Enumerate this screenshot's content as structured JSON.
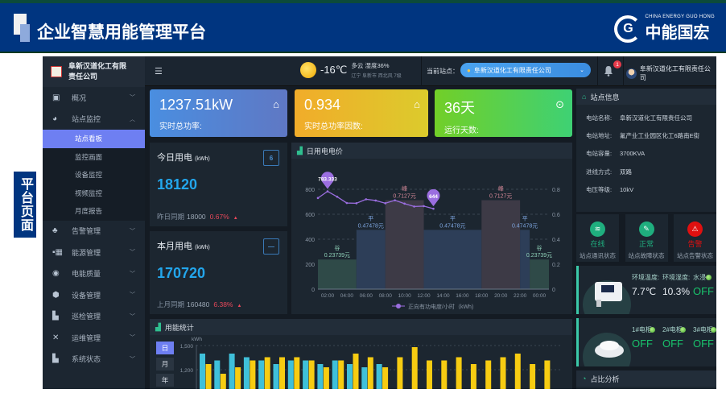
{
  "banner": {
    "title": "企业智慧用能管理平台",
    "logo_en": "CHINA ENERGY GUO HONG",
    "logo_cn": "中能国宏"
  },
  "side_label": "平台页面",
  "sidebar": {
    "company": "阜新汉道化工有限责任公司",
    "items": [
      {
        "label": "概况",
        "icon": "monitor-icon",
        "expanded": false
      },
      {
        "label": "站点监控",
        "icon": "gauge-icon",
        "expanded": true,
        "children": [
          {
            "label": "站点看板",
            "active": true
          },
          {
            "label": "监控画面"
          },
          {
            "label": "设备监控"
          },
          {
            "label": "视频监控"
          },
          {
            "label": "月度报告"
          }
        ]
      },
      {
        "label": "告警管理",
        "icon": "alarm-icon",
        "expanded": false
      },
      {
        "label": "能源管理",
        "icon": "energy-icon",
        "expanded": false
      },
      {
        "label": "电能质量",
        "icon": "quality-icon",
        "expanded": false
      },
      {
        "label": "设备管理",
        "icon": "cube-icon",
        "expanded": false
      },
      {
        "label": "巡检管理",
        "icon": "inspection-icon",
        "expanded": false
      },
      {
        "label": "运维管理",
        "icon": "tools-icon",
        "expanded": false
      },
      {
        "label": "系统状态",
        "icon": "status-icon",
        "expanded": false
      }
    ]
  },
  "topbar": {
    "weather": {
      "temp": "-16℃",
      "desc": "多云 湿度36%",
      "location": "辽宁 阜新市 西北风 7级",
      "icon": "partly-cloudy-icon"
    },
    "site_label": "当前站点：",
    "site_value": "阜新汉道化工有限责任公司",
    "notifications": "1",
    "user": "阜新汉道化工有限责任公司"
  },
  "kpis": [
    {
      "value": "1237.51kW",
      "label": "实时总功率:",
      "color": "#4f86d6",
      "icon": "home-power-icon"
    },
    {
      "value": "0.934",
      "label": "实时总功率因数:",
      "color": "#eab628",
      "icon": "home-power-icon"
    },
    {
      "value": "36天",
      "label": "运行天数:",
      "color": "#4fcc45",
      "icon": "pulse-icon"
    }
  ],
  "today": {
    "title": "今日用电",
    "unit": "(kWh)",
    "calendar": "6",
    "value": "18120",
    "cmp_label": "昨日同期",
    "cmp_value": "18000",
    "change": "0.67%"
  },
  "month": {
    "title": "本月用电",
    "unit": "(kWh)",
    "value": "170720",
    "cmp_label": "上月同期",
    "cmp_value": "160480",
    "change": "6.38%"
  },
  "daily_chart_title": "日用电电价",
  "site_info": {
    "title": "站点信息",
    "rows": [
      {
        "k": "电站名称:",
        "v": "阜新汉道化工有限责任公司"
      },
      {
        "k": "电站地址:",
        "v": "氟产业工业园区化工6路南E街"
      },
      {
        "k": "电站容量:",
        "v": "3700KVA"
      },
      {
        "k": "进线方式:",
        "v": "双路"
      },
      {
        "k": "电压等级:",
        "v": "10kV"
      }
    ]
  },
  "status_tiles": [
    {
      "status": "在线",
      "desc": "站点通讯状态",
      "color": "#1fae7e",
      "icon": "wifi-icon"
    },
    {
      "status": "正常",
      "desc": "站点故障状态",
      "color": "#1fae7e",
      "icon": "wrench-icon"
    },
    {
      "status": "告警",
      "desc": "站点告警状态",
      "color": "#e01010",
      "icon": "warning-icon"
    }
  ],
  "env_sensor": {
    "temp_label": "环境温度:",
    "temp_value": "7.7℃",
    "hum_label": "环境湿度:",
    "hum_value": "10.3%",
    "water_label": "水浸",
    "water_value": "OFF"
  },
  "smoke_sensor": [
    {
      "label": "1#电柜:",
      "value": "OFF"
    },
    {
      "label": "2#电柜:",
      "value": "OFF"
    },
    {
      "label": "3#电柜:",
      "value": "OFF"
    }
  ],
  "ratio_title": "占比分析",
  "usage": {
    "title": "用能统计",
    "tabs": [
      "日",
      "月",
      "年"
    ],
    "active_tab": "日"
  },
  "chart_data": [
    {
      "type": "bar+line",
      "title": "日用电电价",
      "x_ticks": [
        "02:00",
        "04:00",
        "06:00",
        "08:00",
        "10:00",
        "12:00",
        "14:00",
        "16:00",
        "18:00",
        "20:00",
        "22:00",
        "00:00"
      ],
      "y_left": {
        "range": [
          0,
          800
        ],
        "ticks": [
          0,
          200,
          400,
          600,
          800
        ]
      },
      "y_right": {
        "range": [
          0,
          0.8
        ],
        "ticks": [
          0,
          0.2,
          0.4,
          0.6,
          0.8
        ]
      },
      "price_periods": [
        {
          "name": "谷",
          "label": "0.23739元",
          "price": 0.23739,
          "from": 0,
          "to": 4,
          "color": "#2f4a48"
        },
        {
          "name": "平",
          "label": "0.47478元",
          "price": 0.47478,
          "from": 4,
          "to": 7,
          "color": "#2d3e58"
        },
        {
          "name": "峰",
          "label": "0.7127元",
          "price": 0.7127,
          "from": 7,
          "to": 11,
          "color": "#3d3a46"
        },
        {
          "name": "平",
          "label": "0.47478元",
          "price": 0.47478,
          "from": 11,
          "to": 17,
          "color": "#2d3e58"
        },
        {
          "name": "峰",
          "label": "0.7127元",
          "price": 0.7127,
          "from": 17,
          "to": 21,
          "color": "#3d3a46"
        },
        {
          "name": "平",
          "label": "0.47478元",
          "price": 0.47478,
          "from": 21,
          "to": 22,
          "color": "#2d3e58"
        },
        {
          "name": "谷",
          "label": "0.23739元",
          "price": 0.23739,
          "from": 22,
          "to": 24,
          "color": "#2f4a48"
        }
      ],
      "series": [
        {
          "name": "正向有功电度/小时（kWh)",
          "color": "#9b6ee0",
          "x": [
            0,
            1,
            2,
            3,
            4,
            5,
            6,
            7,
            8,
            9,
            10,
            11,
            12
          ],
          "values": [
            730,
            783.333,
            740,
            690,
            688,
            720,
            710,
            688,
            712,
            685,
            662,
            665,
            644
          ]
        }
      ],
      "markers": [
        "783.333",
        "644"
      ],
      "legend": "bottom"
    },
    {
      "type": "bar",
      "title": "用能统计",
      "ylabel": "kWh",
      "y_ticks": [
        "1,500",
        "1,200"
      ],
      "y_ticks_values": [
        1500,
        1200
      ],
      "grid": true,
      "series": [
        {
          "color": "#3fc0da",
          "values": [
            1400,
            1315,
            1400,
            1355,
            1315,
            1270,
            1315,
            1315,
            1270,
            1315,
            1270,
            1230,
            1270
          ]
        },
        {
          "color": "#f7cc12",
          "values": [
            1270,
            1150,
            1230,
            1315,
            1355,
            1355,
            1355,
            1315,
            1230,
            1315,
            1400,
            1355,
            1230,
            1355,
            1480,
            1315,
            1315,
            1355,
            1270,
            1315,
            1355,
            1400,
            1270,
            1315
          ]
        }
      ]
    }
  ]
}
